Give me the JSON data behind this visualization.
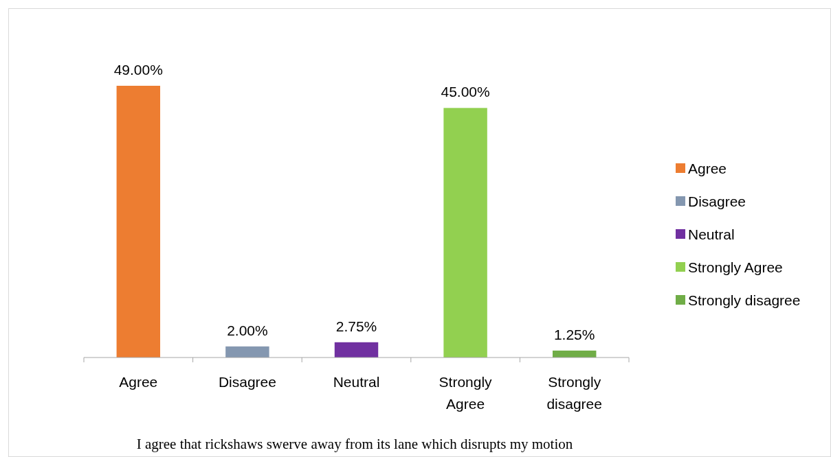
{
  "chart_data": {
    "type": "bar",
    "title": "I agree that rickshaws swerve away from its lane which disrupts my motion",
    "categories": [
      "Agree",
      "Disagree",
      "Neutral",
      "Strongly Agree",
      "Strongly disagree"
    ],
    "series": [
      {
        "name": "Agree",
        "color": "#ed7d31",
        "values": [
          49,
          null,
          null,
          null,
          null
        ],
        "value_labels": [
          "49.00%",
          null,
          null,
          null,
          null
        ]
      },
      {
        "name": "Disagree",
        "color": "#8497b0",
        "values": [
          null,
          2,
          null,
          null,
          null
        ],
        "value_labels": [
          null,
          "2.00%",
          null,
          null,
          null
        ]
      },
      {
        "name": "Neutral",
        "color": "#7030a0",
        "values": [
          null,
          null,
          2.75,
          null,
          null
        ],
        "value_labels": [
          null,
          null,
          "2.75%",
          null,
          null
        ]
      },
      {
        "name": "Strongly Agree",
        "color": "#92d050",
        "values": [
          null,
          null,
          null,
          45,
          null
        ],
        "value_labels": [
          null,
          null,
          null,
          "45.00%",
          null
        ]
      },
      {
        "name": "Strongly disagree",
        "color": "#70ad47",
        "values": [
          null,
          null,
          null,
          null,
          1.25
        ],
        "value_labels": [
          null,
          null,
          null,
          null,
          "1.25%"
        ]
      }
    ],
    "legend": "right"
  }
}
